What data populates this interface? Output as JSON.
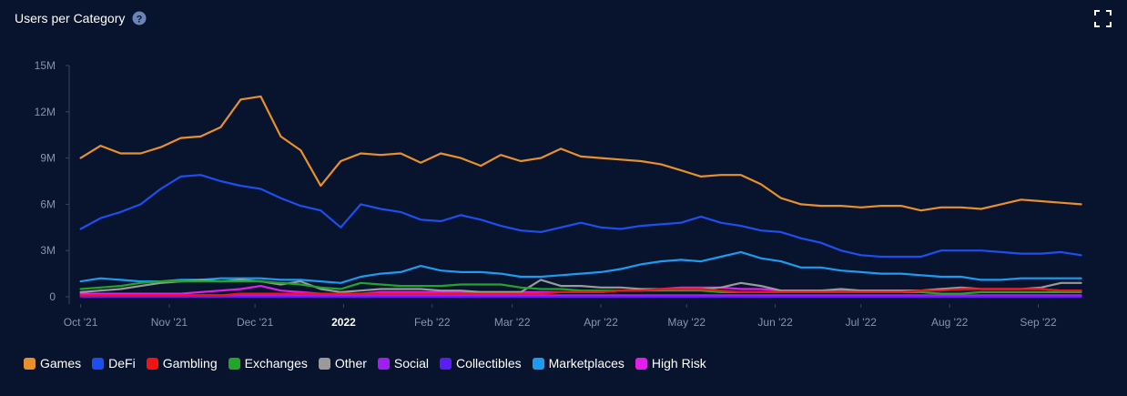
{
  "chart_data": {
    "type": "line",
    "title": "Users per Category",
    "x": [
      0,
      7,
      14,
      21,
      28,
      35,
      42,
      49,
      56,
      63,
      70,
      77,
      84,
      91,
      98,
      105,
      112,
      119,
      126,
      133,
      140,
      147,
      154,
      161,
      168,
      175,
      182,
      189,
      196,
      203,
      210,
      217,
      224,
      231,
      238,
      245,
      252,
      259,
      266,
      273,
      280,
      287,
      294,
      301,
      308,
      315,
      322,
      329,
      336,
      343,
      350
    ],
    "xlim": [
      -4,
      353
    ],
    "xticks": [
      {
        "value": 0,
        "label": "Oct '21"
      },
      {
        "value": 31,
        "label": "Nov '21"
      },
      {
        "value": 61,
        "label": "Dec '21"
      },
      {
        "value": 92,
        "label": "2022"
      },
      {
        "value": 123,
        "label": "Feb '22"
      },
      {
        "value": 151,
        "label": "Mar '22"
      },
      {
        "value": 182,
        "label": "Apr '22"
      },
      {
        "value": 212,
        "label": "May '22"
      },
      {
        "value": 243,
        "label": "Jun '22"
      },
      {
        "value": 273,
        "label": "Jul '22"
      },
      {
        "value": 304,
        "label": "Aug '22"
      },
      {
        "value": 335,
        "label": "Sep '22"
      }
    ],
    "ylim": [
      0,
      15
    ],
    "yticks": [
      0,
      {
        "value": 3,
        "label": "3M"
      },
      {
        "value": 6,
        "label": "6M"
      },
      {
        "value": 9,
        "label": "9M"
      },
      {
        "value": 12,
        "label": "12M"
      },
      {
        "value": 15,
        "label": "15M"
      }
    ],
    "series": [
      {
        "name": "Games",
        "color": "#e8912a",
        "values": [
          9.0,
          9.8,
          9.3,
          9.3,
          9.7,
          10.3,
          10.4,
          11.0,
          12.8,
          13.0,
          10.4,
          9.5,
          7.2,
          8.8,
          9.3,
          9.2,
          9.3,
          8.7,
          9.3,
          9.0,
          8.5,
          9.2,
          8.8,
          9.0,
          9.6,
          9.1,
          9.0,
          8.9,
          8.8,
          8.6,
          8.2,
          7.8,
          7.9,
          7.9,
          7.3,
          6.4,
          6.0,
          5.9,
          5.9,
          5.8,
          5.9,
          5.9,
          5.6,
          5.8,
          5.8,
          5.7,
          6.0,
          6.3,
          6.2,
          6.1,
          6.0
        ]
      },
      {
        "name": "DeFi",
        "color": "#1c4ff0",
        "values": [
          4.4,
          5.1,
          5.5,
          6.0,
          7.0,
          7.8,
          7.9,
          7.5,
          7.2,
          7.0,
          6.4,
          5.9,
          5.6,
          4.5,
          6.0,
          5.7,
          5.5,
          5.0,
          4.9,
          5.3,
          5.0,
          4.6,
          4.3,
          4.2,
          4.5,
          4.8,
          4.5,
          4.4,
          4.6,
          4.7,
          4.8,
          5.2,
          4.8,
          4.6,
          4.3,
          4.2,
          3.8,
          3.5,
          3.0,
          2.7,
          2.6,
          2.6,
          2.6,
          3.0,
          3.0,
          3.0,
          2.9,
          2.8,
          2.8,
          2.9,
          2.7
        ]
      },
      {
        "name": "Gambling",
        "color": "#f01414",
        "values": [
          0.1,
          0.1,
          0.1,
          0.1,
          0.1,
          0.1,
          0.1,
          0.1,
          0.2,
          0.2,
          0.2,
          0.2,
          0.2,
          0.2,
          0.2,
          0.2,
          0.2,
          0.2,
          0.2,
          0.2,
          0.2,
          0.2,
          0.2,
          0.2,
          0.3,
          0.3,
          0.3,
          0.4,
          0.4,
          0.5,
          0.5,
          0.5,
          0.4,
          0.3,
          0.3,
          0.3,
          0.3,
          0.3,
          0.3,
          0.3,
          0.3,
          0.3,
          0.4,
          0.4,
          0.5,
          0.5,
          0.5,
          0.5,
          0.5,
          0.4,
          0.4
        ]
      },
      {
        "name": "Exchanges",
        "color": "#22a52a",
        "values": [
          0.5,
          0.6,
          0.7,
          0.9,
          1.0,
          1.0,
          1.0,
          1.0,
          1.0,
          1.0,
          0.9,
          0.8,
          0.6,
          0.5,
          0.9,
          0.8,
          0.7,
          0.7,
          0.7,
          0.8,
          0.8,
          0.8,
          0.6,
          0.5,
          0.5,
          0.4,
          0.4,
          0.4,
          0.4,
          0.4,
          0.4,
          0.4,
          0.3,
          0.3,
          0.3,
          0.3,
          0.3,
          0.3,
          0.3,
          0.3,
          0.3,
          0.3,
          0.3,
          0.2,
          0.2,
          0.3,
          0.3,
          0.3,
          0.3,
          0.3,
          0.3
        ]
      },
      {
        "name": "Other",
        "color": "#9a9a9a",
        "values": [
          0.3,
          0.4,
          0.5,
          0.7,
          0.9,
          1.0,
          1.1,
          1.0,
          1.1,
          1.0,
          0.8,
          1.0,
          0.5,
          0.3,
          0.4,
          0.5,
          0.5,
          0.5,
          0.4,
          0.4,
          0.3,
          0.3,
          0.3,
          1.1,
          0.7,
          0.7,
          0.6,
          0.6,
          0.5,
          0.5,
          0.5,
          0.5,
          0.6,
          0.9,
          0.7,
          0.4,
          0.4,
          0.4,
          0.5,
          0.4,
          0.4,
          0.4,
          0.4,
          0.5,
          0.6,
          0.5,
          0.5,
          0.5,
          0.6,
          0.9,
          0.9
        ]
      },
      {
        "name": "Social",
        "color": "#a01ff0",
        "values": [
          0.1,
          0.1,
          0.1,
          0.1,
          0.1,
          0.1,
          0.1,
          0.1,
          0.1,
          0.1,
          0.1,
          0.1,
          0.1,
          0.1,
          0.1,
          0.1,
          0.1,
          0.1,
          0.1,
          0.1,
          0.1,
          0.1,
          0.1,
          0.1,
          0.1,
          0.1,
          0.1,
          0.1,
          0.1,
          0.1,
          0.1,
          0.1,
          0.1,
          0.1,
          0.1,
          0.1,
          0.1,
          0.1,
          0.1,
          0.1,
          0.1,
          0.1,
          0.1,
          0.1,
          0.1,
          0.1,
          0.1,
          0.1,
          0.1,
          0.1,
          0.1
        ]
      },
      {
        "name": "Collectibles",
        "color": "#5a1ff0",
        "values": [
          0,
          0,
          0,
          0,
          0,
          0,
          0,
          0,
          0,
          0,
          0,
          0,
          0,
          0,
          0,
          0,
          0,
          0,
          0,
          0,
          0,
          0,
          0,
          0,
          0,
          0,
          0,
          0,
          0,
          0,
          0,
          0,
          0,
          0,
          0,
          0,
          0,
          0,
          0,
          0,
          0,
          0,
          0,
          0,
          0,
          0,
          0,
          0,
          0,
          0,
          0
        ]
      },
      {
        "name": "Marketplaces",
        "color": "#1b9cf0",
        "values": [
          1.0,
          1.2,
          1.1,
          1.0,
          1.0,
          1.1,
          1.1,
          1.2,
          1.2,
          1.2,
          1.1,
          1.1,
          1.0,
          0.9,
          1.3,
          1.5,
          1.6,
          2.0,
          1.7,
          1.6,
          1.6,
          1.5,
          1.3,
          1.3,
          1.4,
          1.5,
          1.6,
          1.8,
          2.1,
          2.3,
          2.4,
          2.3,
          2.6,
          2.9,
          2.5,
          2.3,
          1.9,
          1.9,
          1.7,
          1.6,
          1.5,
          1.5,
          1.4,
          1.3,
          1.3,
          1.1,
          1.1,
          1.2,
          1.2,
          1.2,
          1.2
        ]
      },
      {
        "name": "High Risk",
        "color": "#e21fe8",
        "values": [
          0.2,
          0.2,
          0.2,
          0.2,
          0.2,
          0.2,
          0.3,
          0.4,
          0.5,
          0.7,
          0.4,
          0.3,
          0.2,
          0.2,
          0.2,
          0.3,
          0.3,
          0.3,
          0.3,
          0.3,
          0.3,
          0.3,
          0.3,
          0.3,
          0.3,
          0.3,
          0.3,
          0.4,
          0.4,
          0.5,
          0.6,
          0.6,
          0.6,
          0.5,
          0.5,
          0.4,
          0.4,
          0.4,
          0.4,
          0.4,
          0.4,
          0.4,
          0.4,
          0.5,
          0.5,
          0.5,
          0.5,
          0.5,
          0.5,
          0.4,
          0.4
        ]
      }
    ],
    "legend": "bottom-left",
    "grid": false
  }
}
